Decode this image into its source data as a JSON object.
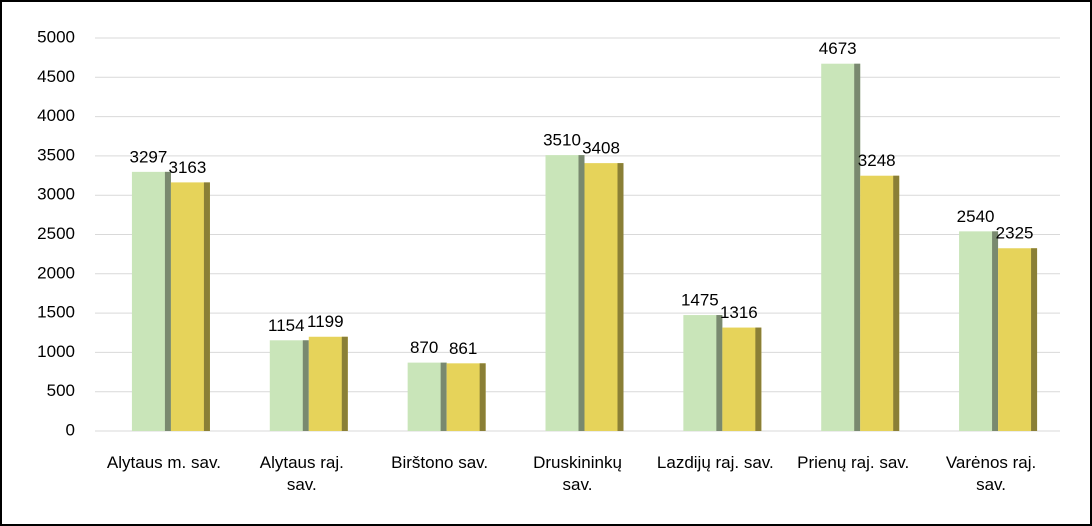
{
  "chart_data": {
    "type": "bar",
    "categories": [
      "Alytaus m. sav.",
      "Alytaus raj. sav.",
      "Birštono sav.",
      "Druskininkų sav.",
      "Lazdijų raj. sav.",
      "Prienų raj. sav.",
      "Varėnos raj. sav."
    ],
    "series": [
      {
        "color": "#c9e5b9",
        "values": [
          3297,
          1154,
          870,
          3510,
          1475,
          4673,
          2540
        ]
      },
      {
        "color": "#e6d35a",
        "values": [
          3163,
          1199,
          861,
          3408,
          1316,
          3248,
          2325
        ]
      }
    ],
    "ylim": [
      0,
      5000
    ],
    "yticks": [
      0,
      500,
      1000,
      1500,
      2000,
      2500,
      3000,
      3500,
      4000,
      4500,
      5000
    ],
    "grid": true
  }
}
